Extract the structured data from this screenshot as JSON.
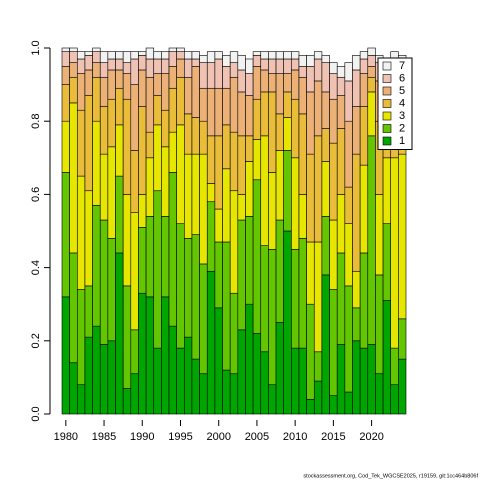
{
  "chart_data": {
    "type": "stacked_bar",
    "categories": [
      1980,
      null,
      null,
      null,
      null,
      1985,
      null,
      null,
      null,
      null,
      1990,
      null,
      null,
      null,
      null,
      1995,
      null,
      null,
      null,
      null,
      2000,
      null,
      null,
      null,
      null,
      2005,
      null,
      null,
      null,
      null,
      2010,
      null,
      null,
      null,
      null,
      2015,
      null,
      null,
      null,
      null,
      2020,
      null,
      null,
      null,
      null
    ],
    "series": [
      {
        "name": "1",
        "color": "#00A600",
        "values": [
          0.32,
          0.14,
          0.08,
          0.21,
          0.24,
          0.19,
          0.2,
          0.44,
          0.07,
          0.11,
          0.33,
          0.32,
          0.18,
          0.32,
          0.24,
          0.18,
          0.21,
          0.15,
          0.11,
          0.39,
          0.29,
          0.12,
          0.11,
          0.23,
          0.3,
          0.22,
          0.17,
          0.08,
          0.25,
          0.5,
          0.18,
          0.18,
          0.04,
          0.09,
          0.38,
          0.05,
          0.19,
          0.06,
          0.2,
          0.18,
          0.19,
          0.11,
          0.31,
          0.08,
          0.15
        ]
      },
      {
        "name": "2",
        "color": "#63C600",
        "values": [
          0.34,
          0.3,
          0.26,
          0.14,
          0.33,
          0.34,
          0.28,
          0.21,
          0.28,
          0.12,
          0.18,
          0.22,
          0.43,
          0.22,
          0.42,
          0.34,
          0.27,
          0.34,
          0.3,
          0.19,
          0.18,
          0.35,
          0.22,
          0.3,
          0.24,
          0.42,
          0.29,
          0.37,
          0.28,
          0.22,
          0.27,
          0.3,
          0.26,
          0.08,
          0.16,
          0.29,
          0.25,
          0.29,
          0.09,
          0.26,
          0.57,
          0.27,
          0.21,
          0.1,
          0.11
        ]
      },
      {
        "name": "3",
        "color": "#E6E600",
        "values": [
          0.14,
          0.41,
          0.31,
          0.26,
          0.23,
          0.18,
          0.25,
          0.14,
          0.25,
          0.32,
          0.09,
          0.16,
          0.18,
          0.19,
          0.11,
          0.27,
          0.23,
          0.22,
          0.3,
          0.05,
          0.09,
          0.2,
          0.28,
          0.07,
          0.15,
          0.11,
          0.3,
          0.21,
          0.19,
          0.09,
          0.25,
          0.12,
          0.17,
          0.3,
          0.15,
          0.19,
          0.16,
          0.17,
          0.1,
          0.24,
          0.12,
          0.22,
          0.18,
          0.52,
          0.45
        ]
      },
      {
        "name": "4",
        "color": "#E9BD3A",
        "values": [
          0.1,
          0.07,
          0.18,
          0.26,
          0.12,
          0.13,
          0.13,
          0.1,
          0.26,
          0.17,
          0.24,
          0.07,
          0.08,
          0.1,
          0.12,
          0.13,
          0.11,
          0.1,
          0.09,
          0.13,
          0.2,
          0.12,
          0.16,
          0.16,
          0.07,
          0.11,
          0.12,
          0.22,
          0.1,
          0.07,
          0.16,
          0.22,
          0.24,
          0.29,
          0.09,
          0.21,
          0.18,
          0.1,
          0.32,
          0.16,
          0.04,
          0.2,
          0.12,
          0.1,
          0.1
        ]
      },
      {
        "name": "5",
        "color": "#ECB176",
        "values": [
          0.05,
          0.04,
          0.1,
          0.07,
          0.04,
          0.08,
          0.08,
          0.05,
          0.07,
          0.18,
          0.1,
          0.15,
          0.06,
          0.1,
          0.06,
          0.05,
          0.1,
          0.14,
          0.09,
          0.13,
          0.13,
          0.1,
          0.15,
          0.12,
          0.11,
          0.09,
          0.06,
          0.05,
          0.11,
          0.05,
          0.08,
          0.1,
          0.17,
          0.15,
          0.1,
          0.12,
          0.09,
          0.18,
          0.13,
          0.09,
          0.03,
          0.11,
          0.06,
          0.11,
          0.09
        ]
      },
      {
        "name": "6",
        "color": "#EFC2B3",
        "values": [
          0.04,
          0.03,
          0.04,
          0.04,
          0.03,
          0.04,
          0.03,
          0.03,
          0.03,
          0.07,
          0.04,
          0.05,
          0.04,
          0.04,
          0.04,
          0.02,
          0.05,
          0.02,
          0.07,
          0.07,
          0.08,
          0.06,
          0.04,
          0.06,
          0.06,
          0.03,
          0.03,
          0.04,
          0.04,
          0.04,
          0.03,
          0.03,
          0.07,
          0.06,
          0.08,
          0.07,
          0.05,
          0.11,
          0.1,
          0.04,
          0.03,
          0.05,
          0.06,
          0.05,
          0.06
        ]
      },
      {
        "name": "7",
        "color": "#F2F2F2",
        "values": [
          0.01,
          0.01,
          0.02,
          0.01,
          0.01,
          0.03,
          0.02,
          0.02,
          0.03,
          0.02,
          0.01,
          0.03,
          0.02,
          0.02,
          0.01,
          0.01,
          0.02,
          0.02,
          0.02,
          0.03,
          0.02,
          0.03,
          0.03,
          0.04,
          0.04,
          0.01,
          0.02,
          0.02,
          0.02,
          0.02,
          0.02,
          0.03,
          0.03,
          0.02,
          0.02,
          0.03,
          0.03,
          0.05,
          0.04,
          0.02,
          0.02,
          0.02,
          0.03,
          0.03,
          0.02
        ]
      }
    ],
    "ylim": [
      0,
      1
    ],
    "yticks": [
      {
        "value": 0,
        "label": "0.0"
      },
      0.2,
      0.4,
      0.6,
      0.8,
      {
        "value": 1,
        "label": "1.0"
      }
    ],
    "legend": "topright",
    "footer": "stockassessment.org, Cod_Tek_WGCSE2025, r19159, git:1cc464b806f"
  }
}
